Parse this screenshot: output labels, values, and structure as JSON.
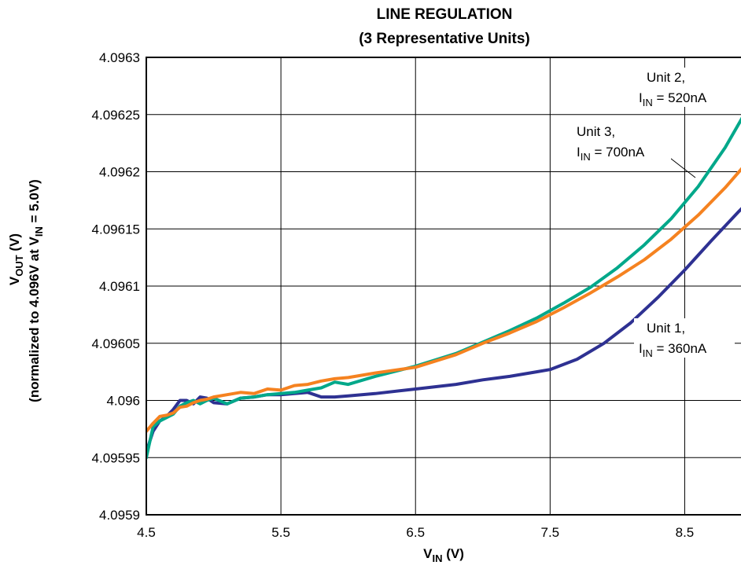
{
  "chart_data": {
    "type": "line",
    "title_line1": "LINE REGULATION",
    "title_line2": "(3 Representative Units)",
    "xlabel": {
      "main": "V",
      "sub": "IN",
      "rest": " (V)"
    },
    "ylabel_line1": {
      "main": "V",
      "sub": "OUT",
      "rest": " (V)"
    },
    "ylabel_line2": {
      "pre": "(normalized to 4.096V at V",
      "sub": "IN",
      "post": " = 5.0V)"
    },
    "xlim": [
      4.5,
      9.0
    ],
    "ylim": [
      4.0959,
      4.0963
    ],
    "x_ticks": [
      4.5,
      5.5,
      6.5,
      7.5,
      8.5
    ],
    "x_tick_labels": [
      "4.5",
      "5.5",
      "6.5",
      "7.5",
      "8.5"
    ],
    "y_ticks": [
      4.0959,
      4.09595,
      4.096,
      4.09605,
      4.0961,
      4.09615,
      4.0962,
      4.09625,
      4.0963
    ],
    "y_tick_labels": [
      "4.0959",
      "4.09595",
      "4.096",
      "4.09605",
      "4.0961",
      "4.09615",
      "4.0962",
      "4.09625",
      "4.0963"
    ],
    "grid": true,
    "series": [
      {
        "name": "Unit 1",
        "color": "#2e3192",
        "annotation": {
          "line1": "Unit 1,",
          "pre": "I",
          "sub": "IN",
          "post": " = 360nA"
        },
        "x": [
          4.5,
          4.55,
          4.6,
          4.65,
          4.7,
          4.75,
          4.8,
          4.85,
          4.9,
          4.95,
          5.0,
          5.1,
          5.2,
          5.3,
          5.4,
          5.5,
          5.6,
          5.7,
          5.8,
          5.9,
          6.0,
          6.2,
          6.5,
          6.8,
          7.0,
          7.2,
          7.4,
          7.5,
          7.7,
          7.9,
          8.1,
          8.3,
          8.5,
          8.7,
          8.9,
          9.0
        ],
        "y": [
          4.095955,
          4.095973,
          4.095982,
          4.095986,
          4.095992,
          4.096,
          4.096,
          4.095997,
          4.096003,
          4.096002,
          4.095998,
          4.095997,
          4.096002,
          4.096003,
          4.096005,
          4.096005,
          4.096006,
          4.096007,
          4.096003,
          4.096003,
          4.096004,
          4.096006,
          4.09601,
          4.096014,
          4.096018,
          4.096021,
          4.096025,
          4.096027,
          4.096036,
          4.09605,
          4.096068,
          4.09609,
          4.096114,
          4.09614,
          4.096165,
          4.096177
        ]
      },
      {
        "name": "Unit 2",
        "color": "#00a88a",
        "annotation": {
          "line1": "Unit 2,",
          "pre": "I",
          "sub": "IN",
          "post": " = 520nA"
        },
        "x": [
          4.5,
          4.55,
          4.6,
          4.65,
          4.7,
          4.75,
          4.8,
          4.85,
          4.9,
          4.95,
          5.0,
          5.1,
          5.2,
          5.3,
          5.4,
          5.5,
          5.6,
          5.7,
          5.8,
          5.9,
          6.0,
          6.2,
          6.5,
          6.8,
          7.0,
          7.2,
          7.4,
          7.6,
          7.8,
          8.0,
          8.2,
          8.4,
          8.6,
          8.8,
          9.0
        ],
        "y": [
          4.09595,
          4.095977,
          4.095982,
          4.095985,
          4.095988,
          4.095995,
          4.095998,
          4.096,
          4.095997,
          4.096,
          4.096002,
          4.095997,
          4.096002,
          4.096003,
          4.096005,
          4.096006,
          4.096007,
          4.096009,
          4.096011,
          4.096016,
          4.096014,
          4.096021,
          4.09603,
          4.096041,
          4.096051,
          4.096061,
          4.096072,
          4.096085,
          4.096099,
          4.096116,
          4.096136,
          4.096159,
          4.096187,
          4.096221,
          4.096262
        ]
      },
      {
        "name": "Unit 3",
        "color": "#f58220",
        "annotation": {
          "line1": "Unit 3,",
          "pre": "I",
          "sub": "IN",
          "post": " = 700nA"
        },
        "x": [
          4.5,
          4.55,
          4.6,
          4.65,
          4.7,
          4.75,
          4.8,
          4.85,
          4.9,
          4.95,
          5.0,
          5.1,
          5.2,
          5.3,
          5.4,
          5.5,
          5.6,
          5.7,
          5.8,
          5.9,
          6.0,
          6.2,
          6.5,
          6.8,
          7.0,
          7.2,
          7.4,
          7.6,
          7.8,
          8.0,
          8.2,
          8.4,
          8.6,
          8.8,
          9.0
        ],
        "y": [
          4.095973,
          4.09598,
          4.095986,
          4.095987,
          4.095989,
          4.095994,
          4.095995,
          4.095998,
          4.096,
          4.096001,
          4.096003,
          4.096005,
          4.096007,
          4.096006,
          4.09601,
          4.096009,
          4.096013,
          4.096014,
          4.096017,
          4.096019,
          4.09602,
          4.096024,
          4.096029,
          4.09604,
          4.09605,
          4.096059,
          4.096069,
          4.096081,
          4.096094,
          4.096108,
          4.096123,
          4.096141,
          4.096162,
          4.096186,
          4.096213
        ]
      }
    ]
  }
}
